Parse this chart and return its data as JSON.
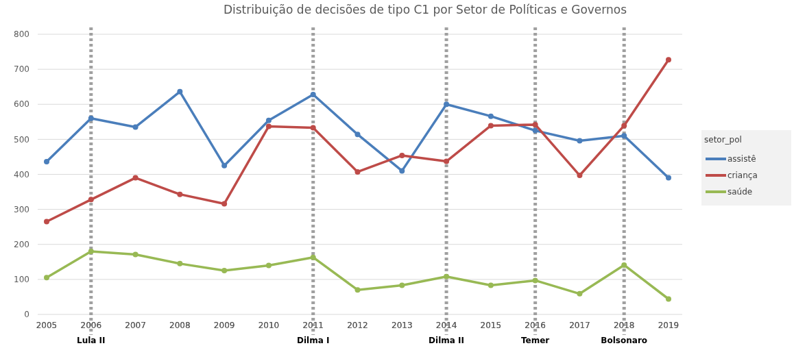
{
  "chart_data": {
    "type": "line",
    "title": "Distribuição de decisões de tipo C1 por Setor de Políticas e Governos",
    "categories": [
      "2005",
      "2006",
      "2007",
      "2008",
      "2009",
      "2010",
      "2011",
      "2012",
      "2013",
      "2014",
      "2015",
      "2016",
      "2017",
      "2018",
      "2019"
    ],
    "series": [
      {
        "name": "assistê",
        "color": "#4a7ebb",
        "values": [
          436,
          560,
          535,
          636,
          425,
          554,
          628,
          514,
          410,
          600,
          566,
          525,
          496,
          510,
          390
        ]
      },
      {
        "name": "criança",
        "color": "#be4b48",
        "values": [
          265,
          328,
          390,
          343,
          316,
          537,
          533,
          407,
          454,
          437,
          539,
          542,
          397,
          539,
          727
        ]
      },
      {
        "name": "saúde",
        "color": "#98b954",
        "values": [
          105,
          180,
          171,
          145,
          125,
          140,
          163,
          70,
          83,
          108,
          83,
          97,
          59,
          141,
          44
        ]
      }
    ],
    "ylim": [
      0,
      800
    ],
    "yticks": [
      0,
      100,
      200,
      300,
      400,
      500,
      600,
      700,
      800
    ],
    "grid": "y",
    "legend": "right",
    "legend_title": "setor_pol",
    "marker": "circle",
    "line_style": "solid",
    "ref_lines": [
      {
        "axis": "x",
        "value": "2006",
        "label": "Lula II",
        "color": "#a0a0a0",
        "line_style": "dotted"
      },
      {
        "axis": "x",
        "value": "2011",
        "label": "Dilma I",
        "color": "#a0a0a0",
        "line_style": "dotted"
      },
      {
        "axis": "x",
        "value": "2014",
        "label": "Dilma II",
        "color": "#a0a0a0",
        "line_style": "dotted"
      },
      {
        "axis": "x",
        "value": "2016",
        "label": "Temer",
        "color": "#a0a0a0",
        "line_style": "dotted"
      },
      {
        "axis": "x",
        "value": "2018",
        "label": "Bolsonaro",
        "color": "#a0a0a0",
        "line_style": "dotted"
      }
    ]
  }
}
